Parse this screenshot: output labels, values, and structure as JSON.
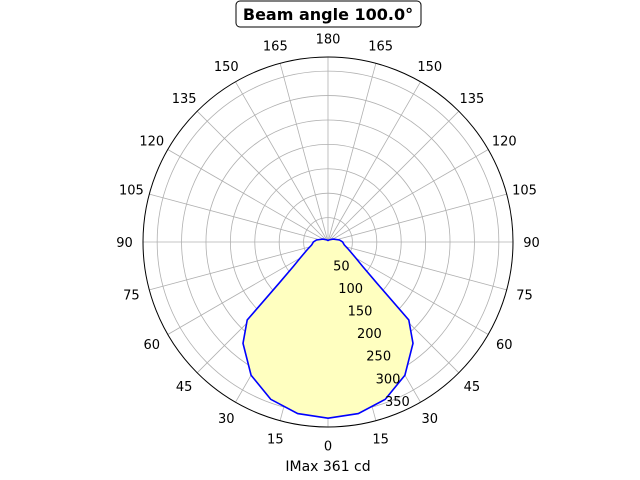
{
  "chart_data": {
    "type": "polar-line",
    "title": "Beam angle 100.0°",
    "xlabel": "IMax 361 cd",
    "theta_zero": "bottom",
    "theta_tick_labels": [
      "0",
      "15",
      "30",
      "45",
      "60",
      "75",
      "90",
      "105",
      "120",
      "135",
      "150",
      "165",
      "180",
      "165",
      "150",
      "135",
      "120",
      "105",
      "90",
      "75",
      "60",
      "45",
      "30",
      "15"
    ],
    "r_tick_labels": [
      "50",
      "100",
      "150",
      "200",
      "250",
      "300",
      "350"
    ],
    "r_ticks": [
      50,
      100,
      150,
      200,
      250,
      300,
      350
    ],
    "rlim": [
      0,
      379
    ],
    "grid": true,
    "symmetric": true,
    "series": [
      {
        "angles_deg": [
          0,
          10,
          20,
          30,
          40,
          46,
          50,
          55,
          60,
          70,
          80,
          90,
          100,
          120,
          150,
          180
        ],
        "values_cd": [
          361,
          357,
          343,
          315,
          271,
          230,
          130,
          86,
          66,
          45,
          34,
          30,
          24,
          12,
          5,
          3
        ]
      }
    ],
    "colors": {
      "line": "#0000ff",
      "fill": "#ffffc0",
      "grid": "#b0b0b0"
    }
  }
}
